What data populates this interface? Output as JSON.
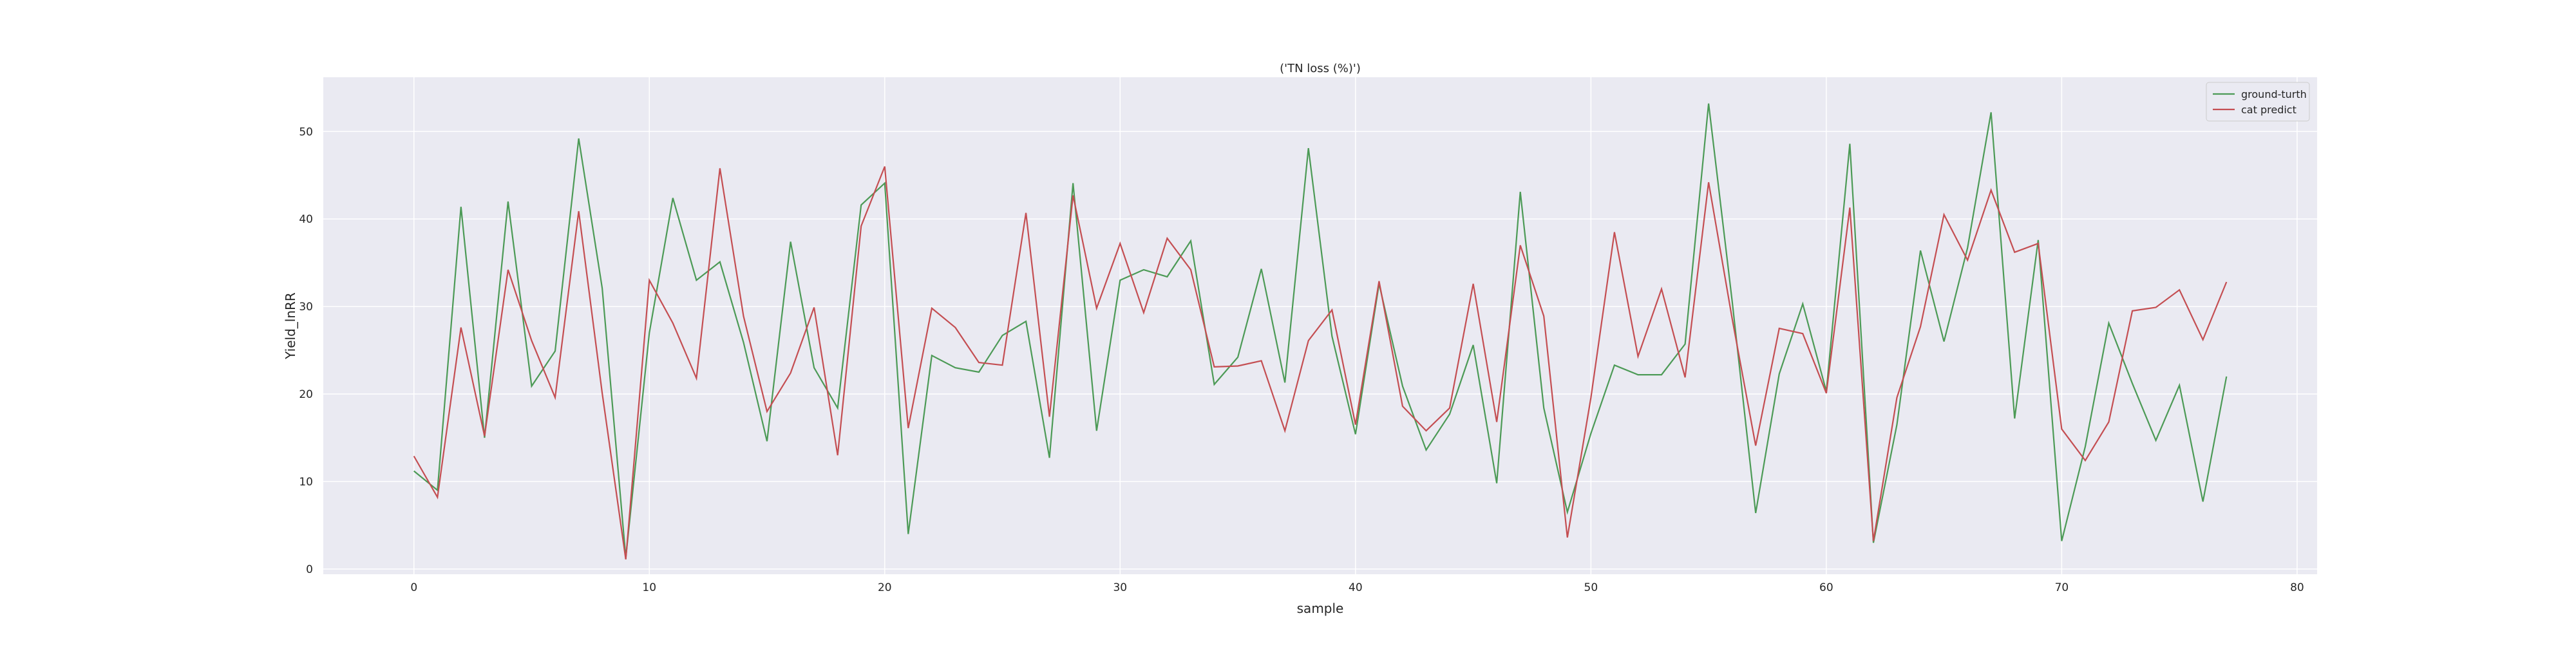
{
  "chart_data": {
    "type": "line",
    "title": "('TN loss (%)')",
    "xlabel": "sample",
    "ylabel": "Yield_lnRR",
    "xlim": [
      -3.85,
      80.85
    ],
    "ylim": [
      -0.6,
      56.2
    ],
    "xticks": [
      0,
      10,
      20,
      30,
      40,
      50,
      60,
      70,
      80
    ],
    "yticks": [
      0,
      10,
      20,
      30,
      40,
      50
    ],
    "grid": true,
    "background": "#eaeaf2",
    "legend_position": "top-right",
    "x": [
      0,
      1,
      2,
      3,
      4,
      5,
      6,
      7,
      8,
      9,
      10,
      11,
      12,
      13,
      14,
      15,
      16,
      17,
      18,
      19,
      20,
      21,
      22,
      23,
      24,
      25,
      26,
      27,
      28,
      29,
      30,
      31,
      32,
      33,
      34,
      35,
      36,
      37,
      38,
      39,
      40,
      41,
      42,
      43,
      44,
      45,
      46,
      47,
      48,
      49,
      50,
      51,
      52,
      53,
      54,
      55,
      56,
      57,
      58,
      59,
      60,
      61,
      62,
      63,
      64,
      65,
      66,
      67,
      68,
      69,
      70,
      71,
      72,
      73,
      74,
      75,
      76,
      77
    ],
    "series": [
      {
        "name": "ground-turth",
        "color": "#4c9a56",
        "values": [
          11.2,
          9.0,
          41.4,
          15.0,
          42.0,
          20.9,
          24.9,
          49.2,
          32.1,
          1.3,
          27.0,
          42.4,
          33.0,
          35.1,
          25.9,
          14.6,
          37.4,
          23.0,
          18.4,
          41.6,
          44.1,
          4.0,
          24.4,
          23.0,
          22.5,
          26.7,
          28.3,
          12.7,
          44.1,
          15.8,
          33.0,
          34.2,
          33.4,
          37.5,
          21.1,
          24.2,
          34.3,
          21.3,
          48.1,
          26.6,
          15.4,
          32.6,
          20.9,
          13.6,
          17.7,
          25.6,
          9.8,
          43.1,
          18.4,
          6.5,
          15.5,
          23.3,
          22.2,
          22.2,
          25.7,
          53.2,
          30.6,
          6.4,
          22.3,
          30.3,
          20.3,
          48.6,
          3.0,
          16.5,
          36.4,
          26.0,
          36.7,
          52.2,
          17.2,
          37.6,
          3.2,
          14.0,
          28.1,
          21.2,
          14.7,
          21.0,
          7.7,
          22.0
        ]
      },
      {
        "name": "cat predict",
        "color": "#c44e52",
        "values": [
          12.9,
          8.2,
          27.6,
          15.2,
          34.2,
          26.1,
          19.6,
          40.9,
          20.1,
          1.1,
          33.0,
          28.1,
          21.8,
          45.8,
          28.9,
          18.0,
          22.4,
          29.9,
          13.0,
          39.2,
          46.0,
          16.1,
          29.8,
          27.6,
          23.6,
          23.3,
          40.7,
          17.4,
          42.7,
          29.8,
          37.2,
          29.3,
          37.8,
          34.2,
          23.1,
          23.2,
          23.8,
          15.8,
          26.1,
          29.6,
          16.5,
          32.9,
          18.6,
          15.8,
          18.4,
          32.6,
          16.8,
          37.0,
          28.9,
          3.6,
          19.6,
          38.5,
          24.3,
          32.0,
          21.9,
          44.2,
          28.6,
          14.1,
          27.5,
          26.9,
          20.1,
          41.3,
          3.2,
          19.6,
          27.7,
          40.5,
          35.3,
          43.3,
          36.2,
          37.2,
          16.0,
          12.4,
          16.8,
          29.5,
          29.9,
          31.9,
          26.2,
          32.8
        ]
      }
    ]
  }
}
